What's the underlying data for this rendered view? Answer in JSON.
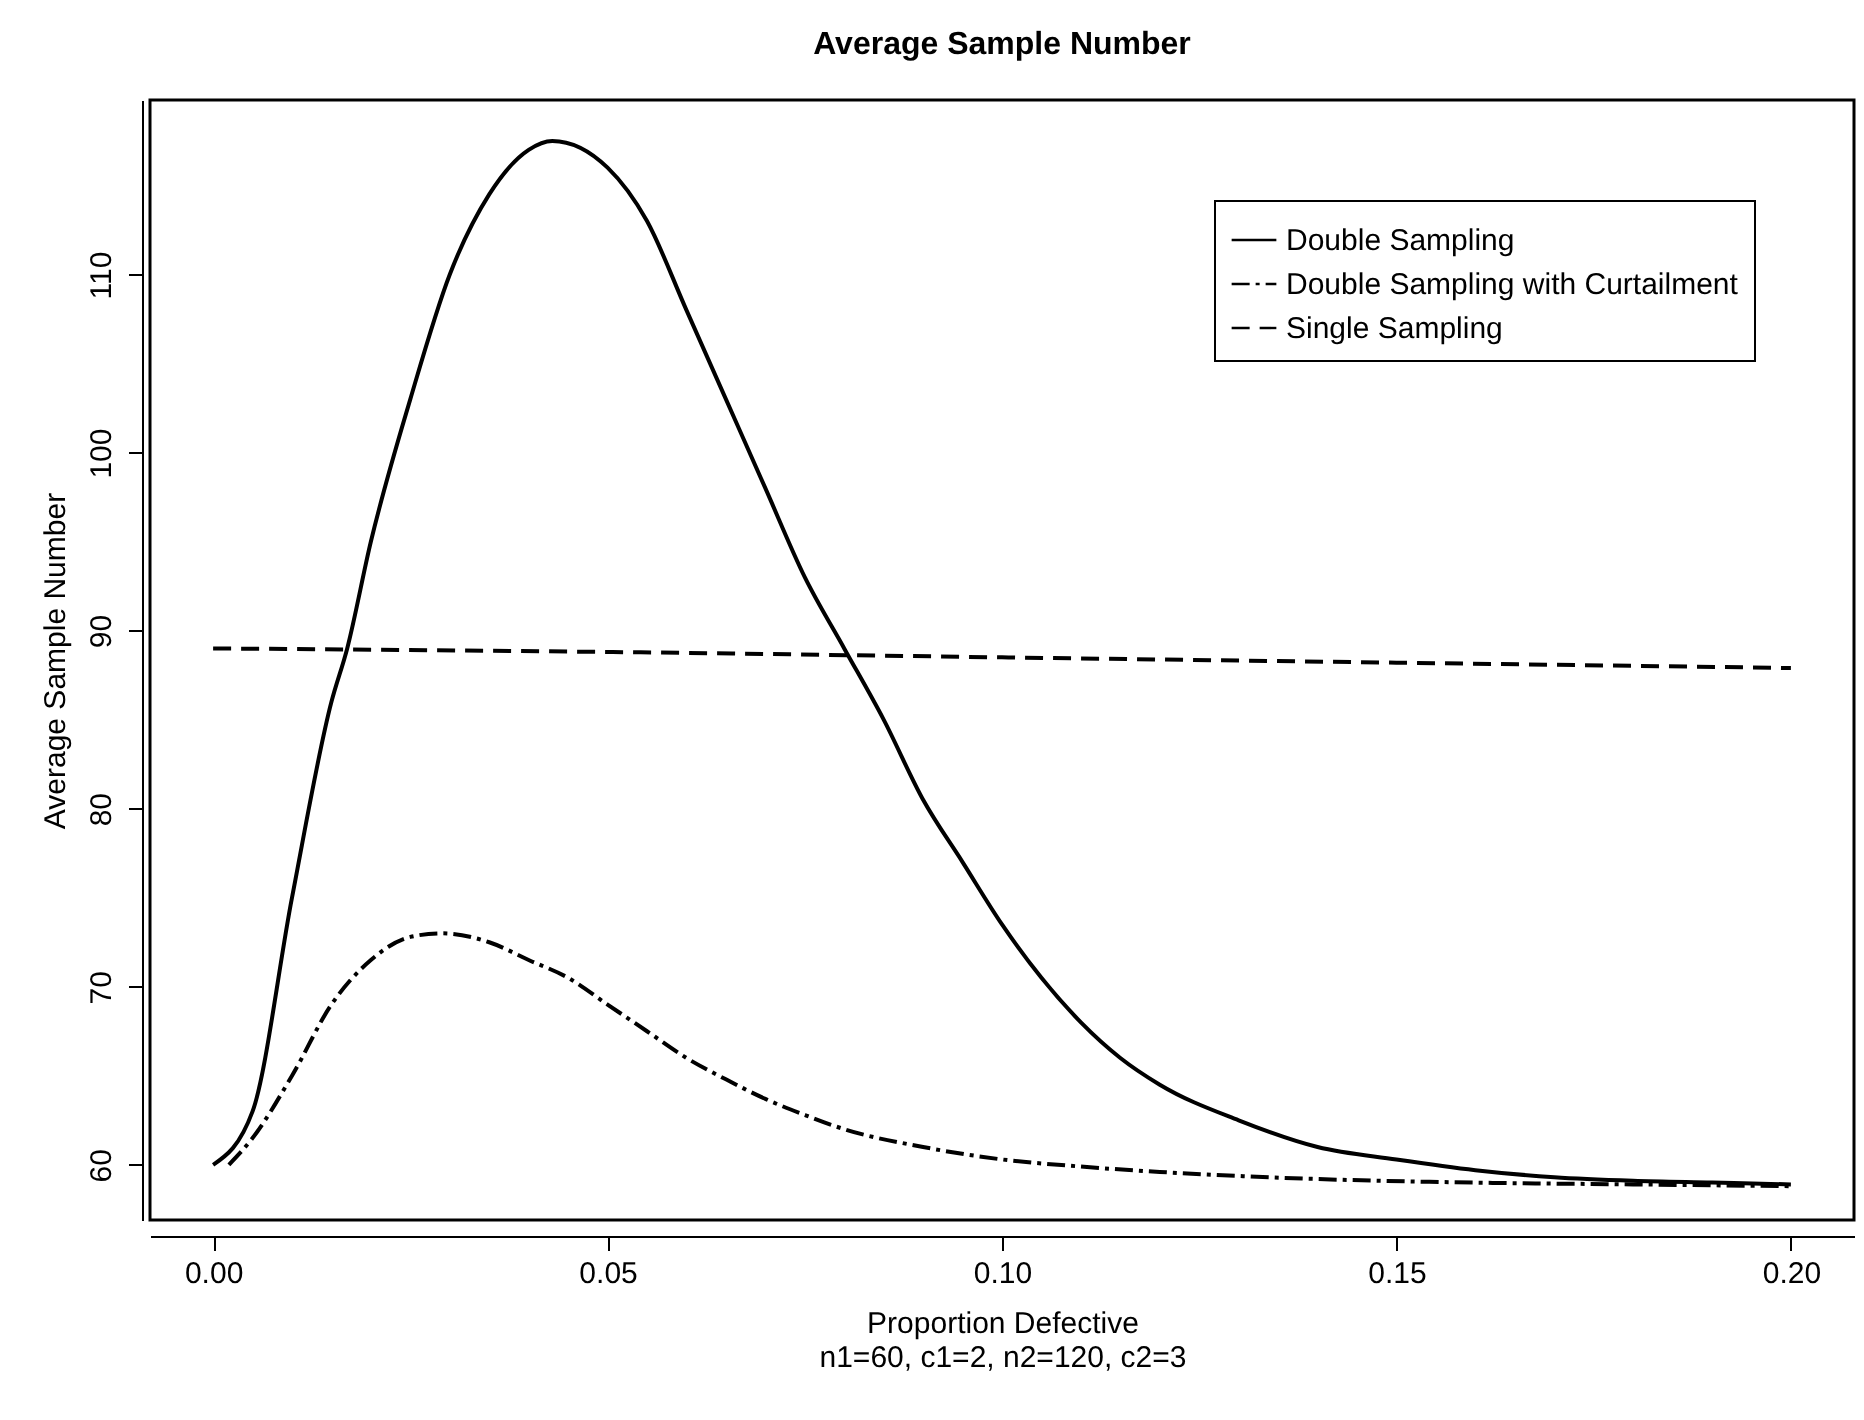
{
  "chart_data": {
    "type": "line",
    "title": "Average Sample Number",
    "xlabel": "Proportion Defective",
    "ylabel": "Average Sample Number",
    "annotations": [
      "n1=60, c1=2, n2=120, c2=3"
    ],
    "xlim": [
      -0.008,
      0.208
    ],
    "xticks": [
      {
        "value": 0,
        "label": "0.00"
      },
      {
        "value": 0.05,
        "label": "0.05"
      },
      {
        "value": 0.1,
        "label": "0.10"
      },
      {
        "value": 0.15,
        "label": "0.15"
      },
      {
        "value": 0.2,
        "label": "0.20"
      }
    ],
    "ylim": [
      56.9,
      119.8
    ],
    "yticks": [
      60,
      70,
      80,
      90,
      100,
      110
    ],
    "grid": false,
    "legend": "top right",
    "marker": "none",
    "series": [
      {
        "name": "Double Sampling",
        "color": "#000000",
        "line_style": "solid",
        "x": [
          0,
          0.005,
          0.01,
          0.015,
          0.017,
          0.02,
          0.025,
          0.03,
          0.035,
          0.04,
          0.043,
          0.05,
          0.055,
          0.06,
          0.065,
          0.07,
          0.075,
          0.08,
          0.085,
          0.09,
          0.095,
          0.1,
          0.105,
          0.11,
          0.115,
          0.12,
          0.13,
          0.14,
          0.15,
          0.16,
          0.17,
          0.18,
          0.19,
          0.2
        ],
        "values": [
          60,
          63,
          75,
          86,
          89,
          95,
          103,
          110,
          114.5,
          117,
          117.5,
          116,
          113,
          108,
          103,
          98,
          93,
          89,
          85,
          80.5,
          77,
          73.5,
          70.5,
          68,
          66,
          64.5,
          62.5,
          61,
          60.3,
          59.7,
          59.3,
          59.1,
          59,
          58.9
        ]
      },
      {
        "name": "Double Sampling with Curtailment",
        "color": "#000000",
        "line_style": "dashdot",
        "x": [
          0.002,
          0.005,
          0.01,
          0.015,
          0.02,
          0.025,
          0.029,
          0.035,
          0.04,
          0.045,
          0.05,
          0.055,
          0.06,
          0.065,
          0.07,
          0.075,
          0.08,
          0.09,
          0.1,
          0.11,
          0.12,
          0.14,
          0.16,
          0.18,
          0.2
        ],
        "values": [
          60,
          61.5,
          65,
          69,
          71.5,
          72.8,
          73,
          72.5,
          71.5,
          70.5,
          69,
          67.5,
          66,
          64.8,
          63.7,
          62.8,
          62,
          61,
          60.3,
          59.9,
          59.6,
          59.2,
          59,
          58.9,
          58.8
        ]
      },
      {
        "name": "Single Sampling",
        "color": "#000000",
        "line_style": "dashed",
        "x": [
          0,
          0.05,
          0.1,
          0.15,
          0.2
        ],
        "values": [
          89,
          88.8,
          88.5,
          88.2,
          87.9
        ]
      }
    ]
  }
}
